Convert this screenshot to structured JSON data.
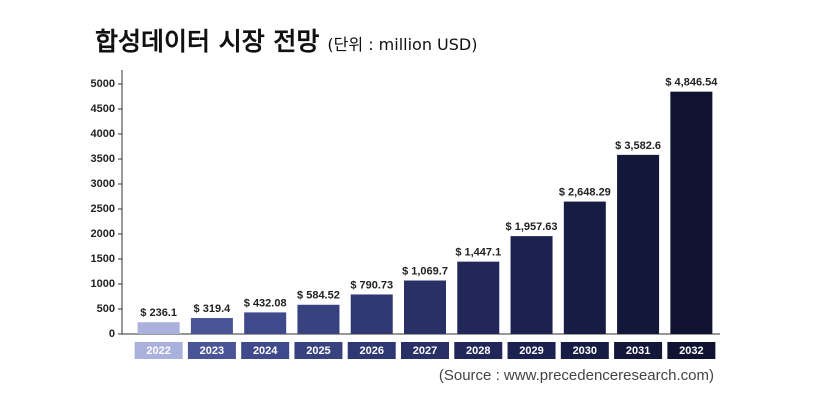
{
  "chart_data": {
    "type": "bar",
    "title": "합성데이터 시장 전망",
    "subtitle": "(단위 : million USD)",
    "source": "(Source :  www.precedenceresearch.com)",
    "categories": [
      "2022",
      "2023",
      "2024",
      "2025",
      "2026",
      "2027",
      "2028",
      "2029",
      "2030",
      "2031",
      "2032"
    ],
    "values": [
      236.1,
      319.4,
      432.08,
      584.52,
      790.73,
      1069.7,
      1447.1,
      1957.63,
      2648.29,
      3582.6,
      4846.54
    ],
    "value_labels": [
      "$ 236.1",
      "$ 319.4",
      "$ 432.08",
      "$ 584.52",
      "$ 790.73",
      "$ 1,069.7",
      "$ 1,447.1",
      "$ 1,957.63",
      "$ 2,648.29",
      "$ 3,582.6",
      "$ 4,846.54"
    ],
    "colors": [
      "#a9b1dc",
      "#4a5597",
      "#3f4a8c",
      "#38427f",
      "#2f3873",
      "#283066",
      "#212859",
      "#1c2250",
      "#171c44",
      "#13173a",
      "#0f1230"
    ],
    "ylim": [
      0,
      5000
    ],
    "yticks": [
      0,
      500,
      1000,
      1500,
      2000,
      2500,
      3000,
      3500,
      4000,
      4500,
      5000
    ]
  }
}
